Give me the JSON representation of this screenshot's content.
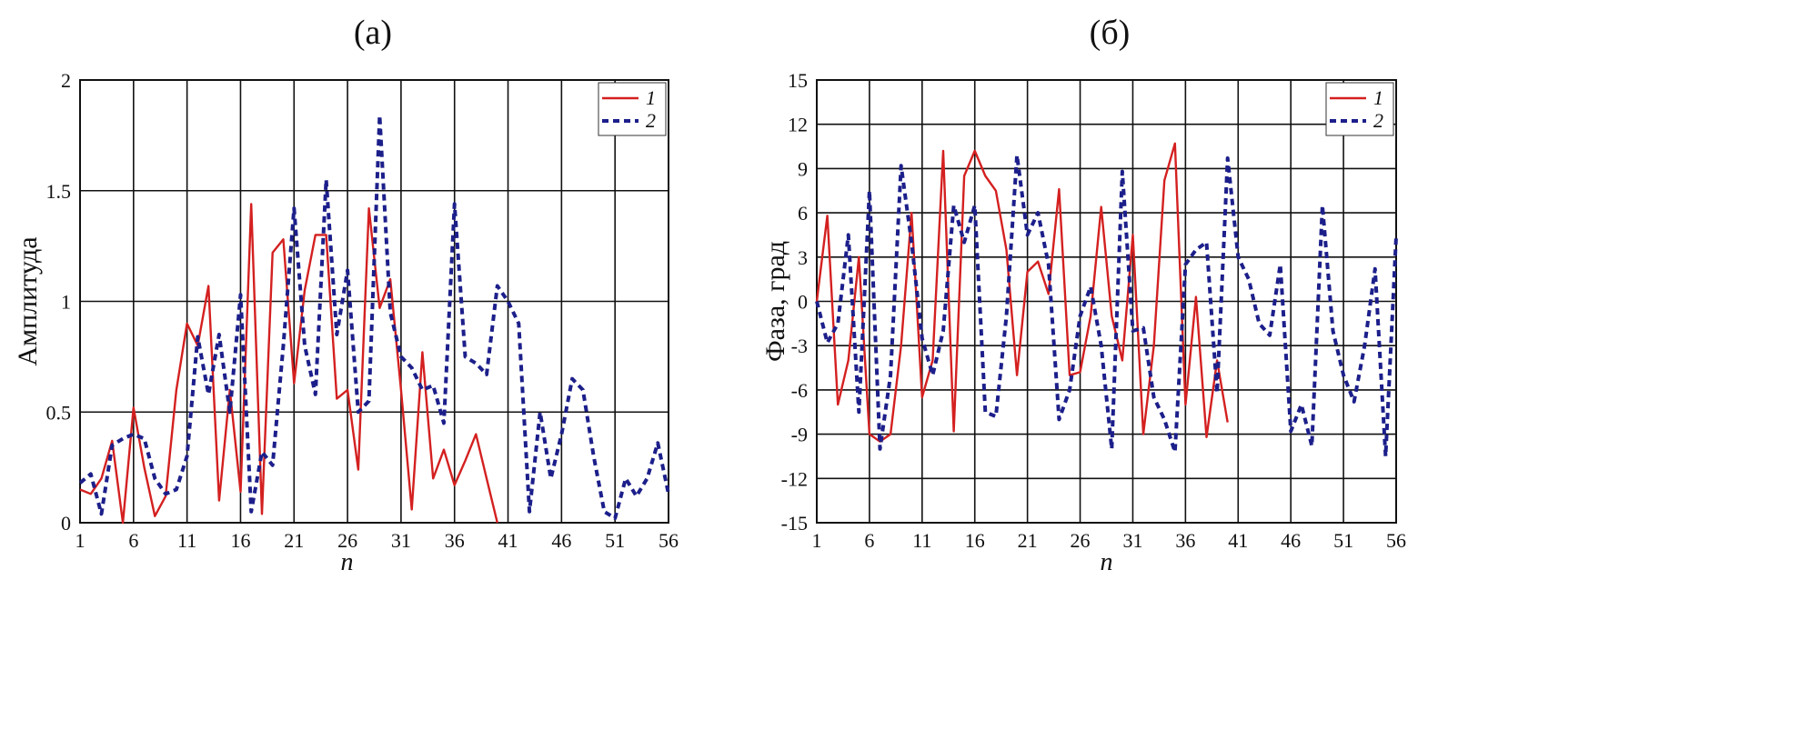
{
  "chart_data": [
    {
      "type": "line",
      "title": "(a)",
      "xlabel": "n",
      "ylabel": "Амплитуда",
      "xlim": [
        1,
        56
      ],
      "ylim": [
        0,
        2
      ],
      "xticks": [
        1,
        6,
        11,
        16,
        21,
        26,
        31,
        36,
        41,
        46,
        51,
        56
      ],
      "yticks": [
        0,
        0.5,
        1,
        1.5,
        2
      ],
      "ytick_labels": [
        "0",
        "0.5",
        "1",
        "1.5",
        "2"
      ],
      "grid": true,
      "legend_position": "top-right",
      "series": [
        {
          "name": "1",
          "color": "#d42020",
          "style": "solid",
          "values": [
            0.15,
            0.13,
            0.2,
            0.37,
            0.0,
            0.52,
            0.25,
            0.03,
            0.12,
            0.6,
            0.9,
            0.8,
            1.07,
            0.1,
            0.6,
            0.14,
            1.44,
            0.04,
            1.22,
            1.28,
            0.63,
            1.05,
            1.3,
            1.3,
            0.56,
            0.6,
            0.24,
            1.42,
            0.97,
            1.1,
            0.6,
            0.06,
            0.77,
            0.2,
            0.33,
            0.17,
            0.28,
            0.4,
            0.2,
            0.0
          ]
        },
        {
          "name": "2",
          "color": "#1c1f8a",
          "style": "dashed",
          "values": [
            0.18,
            0.22,
            0.04,
            0.35,
            0.38,
            0.4,
            0.38,
            0.2,
            0.13,
            0.15,
            0.3,
            0.84,
            0.58,
            0.85,
            0.5,
            1.03,
            0.05,
            0.32,
            0.26,
            0.8,
            1.42,
            0.8,
            0.58,
            1.55,
            0.85,
            1.14,
            0.5,
            0.55,
            1.84,
            0.95,
            0.75,
            0.7,
            0.6,
            0.62,
            0.45,
            1.44,
            0.75,
            0.72,
            0.67,
            1.07,
            1.0,
            0.9,
            0.05,
            0.5,
            0.2,
            0.4,
            0.65,
            0.6,
            0.3,
            0.05,
            0.02,
            0.2,
            0.12,
            0.2,
            0.36,
            0.13
          ]
        }
      ]
    },
    {
      "type": "line",
      "title": "(б)",
      "xlabel": "n",
      "ylabel": "Фаза, град",
      "xlim": [
        1,
        56
      ],
      "ylim": [
        -15,
        15
      ],
      "xticks": [
        1,
        6,
        11,
        16,
        21,
        26,
        31,
        36,
        41,
        46,
        51,
        56
      ],
      "yticks": [
        -15,
        -12,
        -9,
        -6,
        -3,
        0,
        3,
        6,
        9,
        12,
        15
      ],
      "ytick_labels": [
        "-15",
        "-12",
        "-9",
        "-6",
        "-3",
        "0",
        "3",
        "6",
        "9",
        "12",
        "15"
      ],
      "grid": true,
      "legend_position": "top-right",
      "series": [
        {
          "name": "1",
          "color": "#d42020",
          "style": "solid",
          "values": [
            0,
            5.8,
            -7,
            -4,
            3,
            -9,
            -9.5,
            -9,
            -3,
            6,
            -6.5,
            -4,
            10.2,
            -8.8,
            8.5,
            10.2,
            8.5,
            7.5,
            3.5,
            -5,
            2,
            2.7,
            0.5,
            7.6,
            -5,
            -4.8,
            -1,
            6.4,
            -1,
            -4,
            4.5,
            -9,
            -3,
            8.2,
            10.7,
            -7,
            0.3,
            -9.2,
            -4,
            -8.2
          ]
        },
        {
          "name": "2",
          "color": "#1c1f8a",
          "style": "dashed",
          "values": [
            0,
            -2.8,
            -1.5,
            4.5,
            -7.5,
            7.5,
            -10,
            -5,
            9.2,
            4,
            -2.5,
            -5,
            -2,
            6.5,
            4,
            6.5,
            -7.5,
            -7.8,
            -1,
            9.9,
            4.5,
            6,
            2.5,
            -8,
            -6,
            -1,
            1,
            -3,
            -10,
            8.8,
            -2,
            -1.8,
            -6.5,
            -8,
            -10.2,
            2.5,
            3.5,
            4,
            -6.2,
            9.7,
            3,
            1.5,
            -1.5,
            -2.3,
            2.5,
            -8.8,
            -7,
            -9.8,
            6.5,
            -2,
            -5,
            -6.8,
            -3,
            2.2,
            -10.5,
            4.4
          ]
        }
      ]
    }
  ]
}
